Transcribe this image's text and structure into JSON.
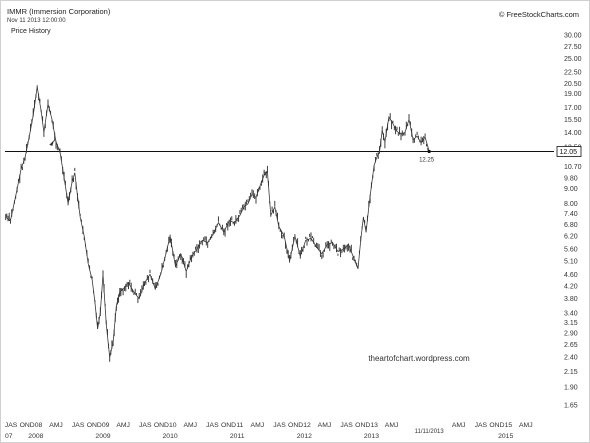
{
  "header": {
    "title": "IMMR (Immersion Corporation)",
    "datetime": "Nov 11 2013 12:00:00",
    "subtitle": "Price History",
    "credit": "© FreeStockCharts.com"
  },
  "chart_data": {
    "type": "line",
    "title": "IMMR (Immersion Corporation)",
    "subtitle": "Price History",
    "yscale": "log",
    "ylim": [
      1.55,
      31
    ],
    "yticks": [
      30.0,
      27.5,
      25.0,
      22.5,
      20.5,
      19.0,
      17.0,
      15.5,
      14.0,
      12.5,
      10.7,
      9.8,
      9.0,
      8.0,
      7.4,
      6.8,
      6.2,
      5.6,
      5.1,
      4.6,
      4.2,
      3.8,
      3.4,
      3.15,
      2.9,
      2.65,
      2.4,
      2.15,
      1.9,
      1.65
    ],
    "ytick_labels": [
      "30.00",
      "27.50",
      "25.00",
      "22.50",
      "20.50",
      "19.00",
      "17.00",
      "15.50",
      "14.00",
      "12.50",
      "10.70",
      "9.80",
      "9.00",
      "8.00",
      "7.40",
      "6.80",
      "6.20",
      "5.60",
      "5.10",
      "4.60",
      "4.20",
      "3.80",
      "3.40",
      "3.15",
      "2.90",
      "2.65",
      "2.40",
      "2.15",
      "1.90",
      "1.65"
    ],
    "xlim": [
      2007.54,
      2015.72
    ],
    "x_month_labels": [
      {
        "x": 2007.3,
        "label": "AMJ"
      },
      {
        "x": 2007.63,
        "label": "JAS"
      },
      {
        "x": 2007.87,
        "label": "OND"
      },
      {
        "x": 2008.04,
        "label": "08"
      },
      {
        "x": 2008.3,
        "label": "AMJ"
      },
      {
        "x": 2008.63,
        "label": "JAS"
      },
      {
        "x": 2008.87,
        "label": "OND"
      },
      {
        "x": 2009.04,
        "label": "09"
      },
      {
        "x": 2009.3,
        "label": "AMJ"
      },
      {
        "x": 2009.63,
        "label": "JAS"
      },
      {
        "x": 2009.87,
        "label": "OND"
      },
      {
        "x": 2010.04,
        "label": "10"
      },
      {
        "x": 2010.3,
        "label": "AMJ"
      },
      {
        "x": 2010.63,
        "label": "JAS"
      },
      {
        "x": 2010.87,
        "label": "OND"
      },
      {
        "x": 2011.04,
        "label": "11"
      },
      {
        "x": 2011.3,
        "label": "AMJ"
      },
      {
        "x": 2011.63,
        "label": "JAS"
      },
      {
        "x": 2011.87,
        "label": "OND"
      },
      {
        "x": 2012.04,
        "label": "12"
      },
      {
        "x": 2012.3,
        "label": "AMJ"
      },
      {
        "x": 2012.63,
        "label": "JAS"
      },
      {
        "x": 2012.87,
        "label": "OND"
      },
      {
        "x": 2013.04,
        "label": "13"
      },
      {
        "x": 2013.3,
        "label": "AMJ"
      },
      {
        "x": 2014.3,
        "label": "AMJ"
      },
      {
        "x": 2014.63,
        "label": "JAS"
      },
      {
        "x": 2014.87,
        "label": "OND"
      },
      {
        "x": 2015.04,
        "label": "15"
      },
      {
        "x": 2015.3,
        "label": "AMJ"
      }
    ],
    "x_year_labels": [
      {
        "x": 2007.54,
        "label": "07"
      },
      {
        "x": 2008.0,
        "label": "2008"
      },
      {
        "x": 2009.0,
        "label": "2009"
      },
      {
        "x": 2010.0,
        "label": "2010"
      },
      {
        "x": 2011.0,
        "label": "2011"
      },
      {
        "x": 2012.0,
        "label": "2012"
      },
      {
        "x": 2013.0,
        "label": "2013"
      },
      {
        "x": 2013.86,
        "label": "11/11/2013"
      },
      {
        "x": 2015.0,
        "label": "2015"
      }
    ],
    "series": [
      {
        "x": [
          2007.55,
          2007.62,
          2007.7,
          2007.78,
          2007.84,
          2007.9,
          2007.96,
          2008.02,
          2008.08,
          2008.12,
          2008.18,
          2008.24,
          2008.3,
          2008.36,
          2008.42,
          2008.48,
          2008.54,
          2008.58,
          2008.62,
          2008.66,
          2008.72,
          2008.78,
          2008.84,
          2008.88,
          2008.92,
          2008.96,
          2009.0,
          2009.05,
          2009.1,
          2009.15,
          2009.2,
          2009.25,
          2009.3,
          2009.38,
          2009.46,
          2009.54,
          2009.62,
          2009.7,
          2009.78,
          2009.86,
          2009.92,
          2010.0,
          2010.08,
          2010.16,
          2010.24,
          2010.32,
          2010.4,
          2010.48,
          2010.56,
          2010.64,
          2010.72,
          2010.8,
          2010.88,
          2010.96,
          2011.04,
          2011.1,
          2011.16,
          2011.22,
          2011.28,
          2011.34,
          2011.4,
          2011.45,
          2011.5,
          2011.56,
          2011.62,
          2011.7,
          2011.78,
          2011.86,
          2011.94,
          2012.02,
          2012.1,
          2012.18,
          2012.26,
          2012.34,
          2012.42,
          2012.5,
          2012.58,
          2012.66,
          2012.74,
          2012.8,
          2012.84,
          2012.88,
          2012.92,
          2012.96,
          2013.0,
          2013.04,
          2013.08,
          2013.12,
          2013.16,
          2013.2,
          2013.26,
          2013.32,
          2013.38,
          2013.44,
          2013.5,
          2013.56,
          2013.62,
          2013.68,
          2013.74,
          2013.8,
          2013.86
        ],
        "values": [
          7.2,
          7.0,
          8.5,
          10.5,
          11.5,
          13.5,
          16.0,
          20.0,
          16.5,
          14.0,
          17.5,
          15.5,
          13.0,
          12.0,
          9.8,
          8.0,
          9.5,
          10.2,
          8.5,
          7.2,
          6.2,
          5.0,
          4.4,
          3.7,
          3.0,
          3.4,
          4.6,
          3.1,
          2.4,
          2.7,
          3.6,
          4.0,
          4.1,
          4.3,
          4.0,
          3.8,
          4.3,
          4.6,
          4.1,
          4.6,
          5.2,
          6.2,
          4.9,
          5.4,
          4.7,
          5.3,
          5.6,
          6.0,
          5.9,
          6.3,
          6.9,
          6.4,
          7.0,
          6.9,
          7.3,
          7.8,
          8.0,
          8.6,
          8.4,
          9.2,
          10.0,
          10.3,
          7.3,
          7.8,
          6.7,
          6.2,
          5.1,
          6.2,
          5.3,
          6.0,
          6.1,
          5.7,
          5.4,
          5.8,
          5.9,
          5.5,
          5.6,
          5.8,
          5.2,
          4.8,
          6.0,
          7.2,
          6.4,
          7.8,
          9.2,
          10.8,
          11.5,
          12.0,
          14.2,
          13.0,
          15.8,
          15.0,
          14.1,
          13.8,
          14.0,
          15.5,
          13.2,
          13.6,
          12.9,
          13.5,
          12.05
        ]
      }
    ],
    "horizontal_line": 12.05,
    "current_value": 12.05,
    "current_label": "12.05",
    "annotation": {
      "x": 2013.71,
      "label": "12.25"
    },
    "grid": false,
    "watermark": "theartofchart.wordpress.com"
  }
}
